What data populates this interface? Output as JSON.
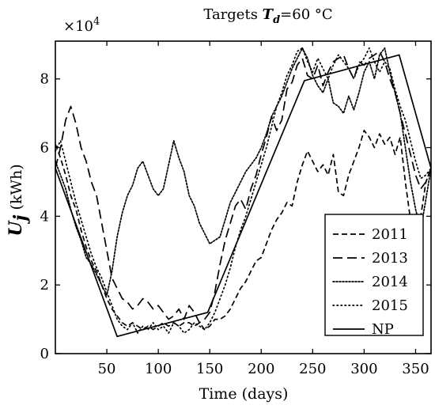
{
  "chart_data": {
    "type": "line",
    "title": "Targets T_d=60 °C",
    "title_parts": [
      "Targets ",
      "T",
      "d",
      "=60 °C"
    ],
    "xlabel": "Time (days)",
    "ylabel_symbol": "U",
    "ylabel_sub": "j",
    "ylabel_unit": "(kWh)",
    "y_multiplier_label": "×10",
    "y_multiplier_exp": "4",
    "xlim": [
      0,
      365
    ],
    "ylim": [
      0,
      9.1
    ],
    "xticks": [
      50,
      100,
      150,
      200,
      250,
      300,
      350
    ],
    "yticks": [
      0,
      2,
      4,
      6,
      8
    ],
    "xtick_labels": [
      "50",
      "100",
      "150",
      "200",
      "250",
      "300",
      "350"
    ],
    "ytick_labels": [
      "0",
      "2",
      "4",
      "6",
      "8"
    ],
    "legend_position": "bottom-right",
    "series": [
      {
        "name": "2011",
        "style": "dashed",
        "x": [
          0,
          5,
          10,
          15,
          20,
          25,
          30,
          35,
          40,
          45,
          50,
          55,
          60,
          65,
          70,
          75,
          80,
          85,
          90,
          95,
          100,
          105,
          110,
          115,
          120,
          125,
          130,
          135,
          140,
          145,
          150,
          155,
          160,
          165,
          170,
          175,
          180,
          185,
          190,
          195,
          200,
          205,
          210,
          215,
          220,
          225,
          230,
          235,
          240,
          245,
          250,
          255,
          260,
          265,
          270,
          275,
          280,
          285,
          290,
          295,
          300,
          305,
          310,
          315,
          320,
          325,
          330,
          335,
          340,
          345,
          350,
          355,
          360,
          365
        ],
        "values": [
          6.1,
          5.7,
          5.2,
          4.6,
          4.2,
          3.6,
          3.1,
          2.7,
          2.4,
          2.0,
          1.6,
          1.3,
          1.1,
          0.9,
          0.8,
          0.9,
          0.8,
          0.7,
          0.8,
          0.7,
          0.8,
          0.9,
          0.8,
          0.9,
          0.8,
          0.9,
          0.9,
          0.8,
          0.9,
          0.7,
          0.8,
          1.0,
          1.0,
          1.1,
          1.3,
          1.6,
          1.9,
          2.1,
          2.4,
          2.7,
          2.8,
          3.2,
          3.6,
          3.9,
          4.1,
          4.4,
          4.3,
          5.0,
          5.5,
          5.9,
          5.6,
          5.3,
          5.5,
          5.2,
          5.8,
          4.7,
          4.6,
          5.2,
          5.6,
          6.0,
          6.5,
          6.3,
          6.0,
          6.4,
          6.1,
          6.3,
          5.8,
          6.3,
          5.0,
          3.9,
          3.2,
          4.0,
          5.0,
          5.4
        ]
      },
      {
        "name": "2013",
        "style": "long-dashed",
        "x": [
          0,
          5,
          10,
          15,
          20,
          25,
          30,
          35,
          40,
          45,
          50,
          55,
          60,
          65,
          70,
          75,
          80,
          85,
          90,
          95,
          100,
          105,
          110,
          115,
          120,
          125,
          130,
          135,
          140,
          145,
          150,
          155,
          160,
          165,
          170,
          175,
          180,
          185,
          190,
          195,
          200,
          205,
          210,
          215,
          220,
          225,
          230,
          235,
          240,
          245,
          250,
          255,
          260,
          265,
          270,
          275,
          280,
          285,
          290,
          295,
          300,
          305,
          310,
          315,
          320,
          325,
          330,
          335,
          340,
          345,
          350,
          355,
          360,
          365
        ],
        "values": [
          5.4,
          6.0,
          6.8,
          7.2,
          6.7,
          6.0,
          5.6,
          5.0,
          4.6,
          3.8,
          3.0,
          2.2,
          1.9,
          1.6,
          1.5,
          1.3,
          1.4,
          1.6,
          1.5,
          1.3,
          1.4,
          1.2,
          1.0,
          1.1,
          1.3,
          1.0,
          1.4,
          1.2,
          0.9,
          1.0,
          1.2,
          1.8,
          2.6,
          3.3,
          3.8,
          4.3,
          4.5,
          4.2,
          4.8,
          5.2,
          5.8,
          6.3,
          6.9,
          6.5,
          6.8,
          7.7,
          7.9,
          8.4,
          8.6,
          8.1,
          8.0,
          8.4,
          7.8,
          8.2,
          8.5,
          8.6,
          8.7,
          8.3,
          8.0,
          8.5,
          8.4,
          8.6,
          8.7,
          8.8,
          8.5,
          8.0,
          7.6,
          7.0,
          6.4,
          5.8,
          5.2,
          4.8,
          5.0,
          5.4
        ]
      },
      {
        "name": "2014",
        "style": "dotted",
        "x": [
          0,
          5,
          10,
          15,
          20,
          25,
          30,
          35,
          40,
          45,
          50,
          55,
          60,
          65,
          70,
          75,
          80,
          85,
          90,
          95,
          100,
          105,
          110,
          115,
          120,
          125,
          130,
          135,
          140,
          145,
          150,
          155,
          160,
          165,
          170,
          175,
          180,
          185,
          190,
          195,
          200,
          205,
          210,
          215,
          220,
          225,
          230,
          235,
          240,
          245,
          250,
          255,
          260,
          265,
          270,
          275,
          280,
          285,
          290,
          295,
          300,
          305,
          310,
          315,
          320,
          325,
          330,
          335,
          340,
          345,
          350,
          355,
          360,
          365
        ],
        "values": [
          5.6,
          5.2,
          4.8,
          4.2,
          3.7,
          3.3,
          2.8,
          2.6,
          2.3,
          2.0,
          1.7,
          2.4,
          3.4,
          4.1,
          4.6,
          4.9,
          5.4,
          5.6,
          5.2,
          4.8,
          4.6,
          4.8,
          5.5,
          6.2,
          5.7,
          5.3,
          4.6,
          4.3,
          3.8,
          3.5,
          3.2,
          3.3,
          3.4,
          3.9,
          4.4,
          4.7,
          5.0,
          5.3,
          5.5,
          5.7,
          6.0,
          6.4,
          6.9,
          7.2,
          7.5,
          7.9,
          8.3,
          8.6,
          8.9,
          8.6,
          8.1,
          7.8,
          7.6,
          8.0,
          7.3,
          7.2,
          7.0,
          7.5,
          7.1,
          7.6,
          8.2,
          8.5,
          8.0,
          8.7,
          8.9,
          8.2,
          7.6,
          7.0,
          6.0,
          5.0,
          4.2,
          3.6,
          4.5,
          5.4
        ]
      },
      {
        "name": "2015",
        "style": "fine-dotted",
        "x": [
          0,
          5,
          10,
          15,
          20,
          25,
          30,
          35,
          40,
          45,
          50,
          55,
          60,
          65,
          70,
          75,
          80,
          85,
          90,
          95,
          100,
          105,
          110,
          115,
          120,
          125,
          130,
          135,
          140,
          145,
          150,
          155,
          160,
          165,
          170,
          175,
          180,
          185,
          190,
          195,
          200,
          205,
          210,
          215,
          220,
          225,
          230,
          235,
          240,
          245,
          250,
          255,
          260,
          265,
          270,
          275,
          280,
          285,
          290,
          295,
          300,
          305,
          310,
          315,
          320,
          325,
          330,
          335,
          340,
          345,
          350,
          355,
          360,
          365
        ],
        "values": [
          5.9,
          6.2,
          5.6,
          5.0,
          4.4,
          3.9,
          3.4,
          2.9,
          2.5,
          2.2,
          1.8,
          1.4,
          1.0,
          0.8,
          0.7,
          0.9,
          0.6,
          0.8,
          0.7,
          0.9,
          0.7,
          0.8,
          0.6,
          0.9,
          0.8,
          0.6,
          0.7,
          0.9,
          0.8,
          0.7,
          0.9,
          1.2,
          1.6,
          2.0,
          2.5,
          3.1,
          3.6,
          4.0,
          4.5,
          5.0,
          5.5,
          6.0,
          6.6,
          7.2,
          7.6,
          8.1,
          8.4,
          8.8,
          8.9,
          8.5,
          8.2,
          8.6,
          8.3,
          8.0,
          8.4,
          8.7,
          8.5,
          8.3,
          8.0,
          8.4,
          8.6,
          8.9,
          8.5,
          8.2,
          8.5,
          8.3,
          7.7,
          7.2,
          6.8,
          6.2,
          5.6,
          5.1,
          5.2,
          5.4
        ]
      },
      {
        "name": "NP",
        "style": "solid",
        "x": [
          0,
          60,
          148,
          242,
          334,
          365
        ],
        "values": [
          5.4,
          0.5,
          1.2,
          7.95,
          8.7,
          5.4
        ]
      }
    ]
  }
}
